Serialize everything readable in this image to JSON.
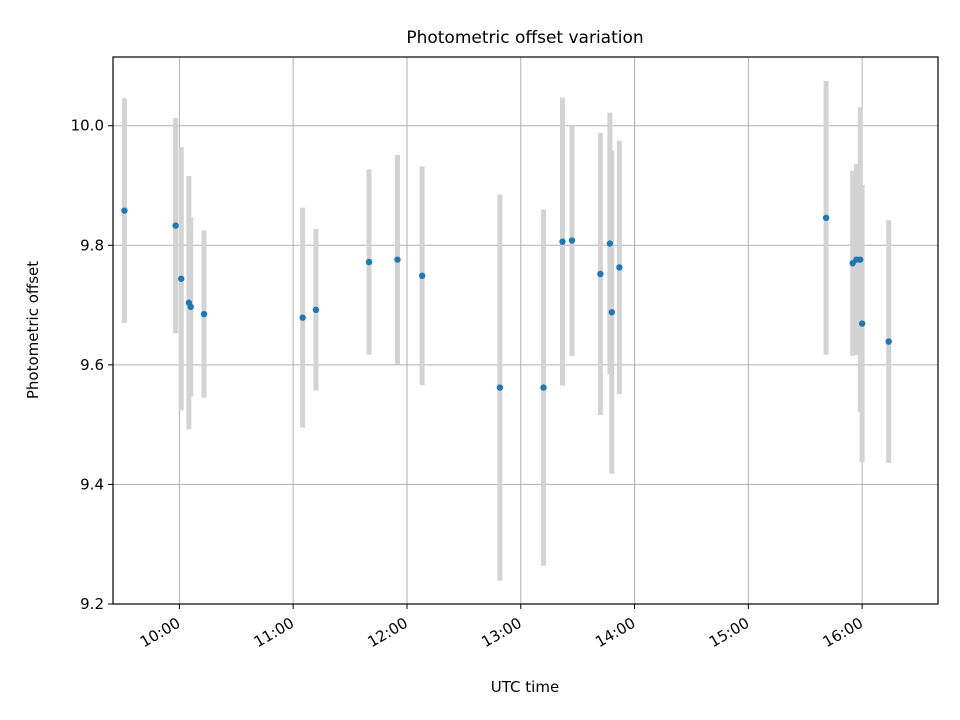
{
  "chart_data": {
    "type": "scatter",
    "title": "Photometric offset variation",
    "xlabel": "UTC time",
    "ylabel": "Photometric offset",
    "x_is_time": true,
    "xlim": [
      "09:25",
      "16:40"
    ],
    "ylim": [
      9.2,
      10.115
    ],
    "x_ticks": [
      "10:00",
      "11:00",
      "12:00",
      "13:00",
      "14:00",
      "15:00",
      "16:00"
    ],
    "y_ticks": [
      9.2,
      9.4,
      9.6,
      9.8,
      10.0
    ],
    "y_tick_labels": [
      "9.2",
      "9.4",
      "9.6",
      "9.8",
      "10.0"
    ],
    "grid": true,
    "colors": {
      "point": "#1f77b4",
      "errorbar": "#d3d3d3",
      "grid": "#b0b0b0",
      "axes": "#000000"
    },
    "points": [
      {
        "x": "09:31",
        "y": 9.858,
        "yerr": 0.188
      },
      {
        "x": "09:58",
        "y": 9.833,
        "yerr": 0.18
      },
      {
        "x": "10:01",
        "y": 9.744,
        "yerr": 0.22
      },
      {
        "x": "10:05",
        "y": 9.704,
        "yerr": 0.212
      },
      {
        "x": "10:06",
        "y": 9.697,
        "yerr": 0.15
      },
      {
        "x": "10:13",
        "y": 9.685,
        "yerr": 0.14
      },
      {
        "x": "11:05",
        "y": 9.679,
        "yerr": 0.184
      },
      {
        "x": "11:12",
        "y": 9.692,
        "yerr": 0.135
      },
      {
        "x": "11:40",
        "y": 9.772,
        "yerr": 0.155
      },
      {
        "x": "11:55",
        "y": 9.776,
        "yerr": 0.175
      },
      {
        "x": "12:08",
        "y": 9.749,
        "yerr": 0.183
      },
      {
        "x": "12:49",
        "y": 9.562,
        "yerr": 0.323
      },
      {
        "x": "13:12",
        "y": 9.562,
        "yerr": 0.298
      },
      {
        "x": "13:22",
        "y": 9.806,
        "yerr": 0.241
      },
      {
        "x": "13:27",
        "y": 9.808,
        "yerr": 0.193
      },
      {
        "x": "13:42",
        "y": 9.752,
        "yerr": 0.236
      },
      {
        "x": "13:47",
        "y": 9.803,
        "yerr": 0.219
      },
      {
        "x": "13:48",
        "y": 9.688,
        "yerr": 0.27
      },
      {
        "x": "13:52",
        "y": 9.763,
        "yerr": 0.212
      },
      {
        "x": "15:41",
        "y": 9.846,
        "yerr": 0.229
      },
      {
        "x": "15:55",
        "y": 9.77,
        "yerr": 0.155
      },
      {
        "x": "15:57",
        "y": 9.776,
        "yerr": 0.16
      },
      {
        "x": "15:59",
        "y": 9.776,
        "yerr": 0.255
      },
      {
        "x": "16:00",
        "y": 9.669,
        "yerr": 0.232
      },
      {
        "x": "16:14",
        "y": 9.639,
        "yerr": 0.203
      }
    ]
  }
}
